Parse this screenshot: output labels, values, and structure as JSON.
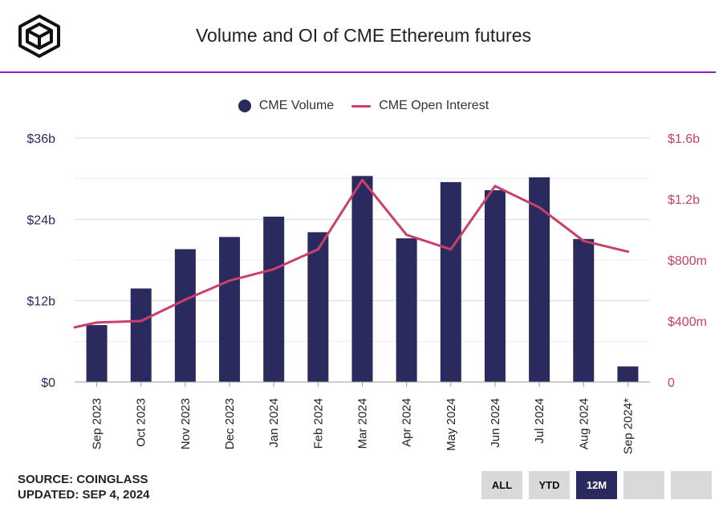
{
  "header": {
    "title": "Volume and OI of CME Ethereum futures"
  },
  "legend": {
    "volume_label": "CME Volume",
    "oi_label": "CME Open Interest"
  },
  "colors": {
    "volume": "#2b2a5e",
    "open_interest": "#c9406b",
    "accent_rule": "#8a22c6",
    "grid": "#dadada"
  },
  "footer": {
    "source": "SOURCE: COINGLASS",
    "updated": "UPDATED: SEP 4, 2024"
  },
  "buttons": [
    {
      "label": "ALL",
      "active": false
    },
    {
      "label": "YTD",
      "active": false
    },
    {
      "label": "12M",
      "active": true
    },
    {
      "label": "",
      "active": false
    },
    {
      "label": "",
      "active": false
    }
  ],
  "chart_data": {
    "type": "bar",
    "title": "Volume and OI of CME Ethereum futures",
    "categories": [
      "Sep 2023",
      "Oct 2023",
      "Nov 2023",
      "Dec 2023",
      "Jan 2024",
      "Feb 2024",
      "Mar 2024",
      "Apr 2024",
      "May 2024",
      "Jun 2024",
      "Jul 2024",
      "Aug 2024",
      "Sep 2024*"
    ],
    "series": [
      {
        "name": "CME Volume",
        "type": "bar",
        "axis": "left",
        "unit": "billions USD",
        "values": [
          8.4,
          13.8,
          19.6,
          21.4,
          24.4,
          22.1,
          30.4,
          21.2,
          29.5,
          28.3,
          30.2,
          21.1,
          2.3
        ]
      },
      {
        "name": "CME Open Interest",
        "type": "line",
        "axis": "right",
        "unit": "millions USD",
        "values": [
          390,
          400,
          540,
          665,
          740,
          870,
          1325,
          965,
          870,
          1285,
          1145,
          925,
          855
        ]
      }
    ],
    "y_left": {
      "ticks": [
        "$0",
        "$12b",
        "$24b",
        "$36b"
      ],
      "range": [
        0,
        36
      ]
    },
    "y_right": {
      "ticks": [
        "0",
        "$400m",
        "$800m",
        "$1.2b",
        "$1.6b"
      ],
      "range": [
        0,
        1600
      ]
    },
    "grid": true,
    "legend_position": "top-center"
  }
}
